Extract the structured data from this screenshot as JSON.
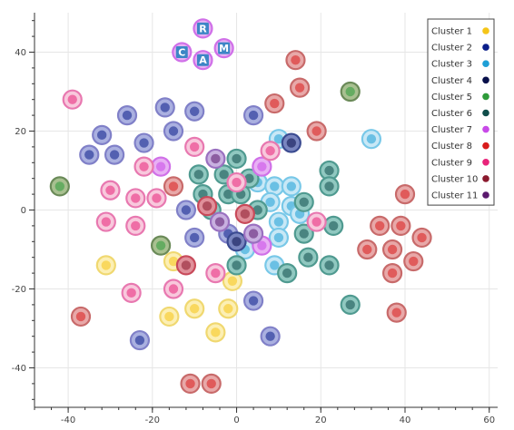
{
  "chart_data": {
    "type": "scatter",
    "title": "",
    "xlabel": "",
    "ylabel": "",
    "xlim": [
      -48,
      62
    ],
    "ylim": [
      -50,
      50
    ],
    "x_ticks": [
      -40,
      -20,
      0,
      20,
      40,
      60
    ],
    "y_ticks": [
      -40,
      -20,
      0,
      20,
      40
    ],
    "grid": true,
    "legend_position": "top-right",
    "series": [
      {
        "name": "Cluster 1",
        "color": "#f5c518",
        "ring": "#f0d870",
        "inner": "#fcefb4",
        "points": [
          {
            "x": -31,
            "y": -14,
            "icon": "tangerine-icon"
          },
          {
            "x": -15,
            "y": -13,
            "icon": "yellow-heart-icon"
          },
          {
            "x": -1,
            "y": -18,
            "icon": "blue-heart-icon"
          },
          {
            "x": -10,
            "y": -25,
            "icon": "cookie-icon"
          },
          {
            "x": -16,
            "y": -27,
            "icon": "tiger-icon"
          },
          {
            "x": -2,
            "y": -25,
            "icon": "paw-prints-icon"
          },
          {
            "x": -5,
            "y": -31,
            "icon": "bee-icon"
          }
        ]
      },
      {
        "name": "Cluster 2",
        "color": "#0b1f8a",
        "ring": "#8080c8",
        "inner": "#aab0e0",
        "points": [
          {
            "x": -26,
            "y": 24,
            "icon": "christmas-tree-icon"
          },
          {
            "x": -17,
            "y": 26,
            "icon": "palm-tree-icon"
          },
          {
            "x": -10,
            "y": 25,
            "icon": "crescent-moon-icon"
          },
          {
            "x": -32,
            "y": 19,
            "icon": "waffle-icon"
          },
          {
            "x": -15,
            "y": 20,
            "icon": "sun-face-icon"
          },
          {
            "x": -35,
            "y": 14,
            "icon": "maple-leaf-icon"
          },
          {
            "x": -29,
            "y": 14,
            "icon": "candy-icon"
          },
          {
            "x": -22,
            "y": 17,
            "icon": "sunflower-icon"
          },
          {
            "x": -12,
            "y": 0,
            "icon": "check-mark-icon"
          },
          {
            "x": -10,
            "y": -7,
            "icon": "sun-icon"
          },
          {
            "x": -2,
            "y": -6,
            "icon": "hand-icon"
          },
          {
            "x": -23,
            "y": -33,
            "icon": "exclamation-icon"
          },
          {
            "x": 4,
            "y": 24,
            "icon": "syringe-icon"
          },
          {
            "x": 4,
            "y": -23,
            "icon": "baseball-icon"
          },
          {
            "x": 8,
            "y": -32,
            "icon": "snowflake-icon"
          }
        ]
      },
      {
        "name": "Cluster 3",
        "color": "#1e9fd6",
        "ring": "#78c8e8",
        "inner": "#c8e8f6",
        "points": [
          {
            "x": 10,
            "y": 18,
            "icon": "fire-icon"
          },
          {
            "x": 32,
            "y": 18,
            "icon": "ambulance-icon"
          },
          {
            "x": 5,
            "y": 7,
            "icon": "cat-icon"
          },
          {
            "x": 9,
            "y": 6,
            "icon": "thumbs-up-icon"
          },
          {
            "x": 8,
            "y": 2,
            "icon": "pray-icon"
          },
          {
            "x": 13,
            "y": 6,
            "icon": "flexed-arm-icon"
          },
          {
            "x": 13,
            "y": 1,
            "icon": "grin-icon"
          },
          {
            "x": 10,
            "y": -3,
            "icon": "ok-hand-icon"
          },
          {
            "x": 2,
            "y": -10,
            "icon": "muscle-icon"
          },
          {
            "x": 10,
            "y": -7,
            "icon": "clap-icon"
          },
          {
            "x": 15,
            "y": -1,
            "icon": "wave-icon"
          },
          {
            "x": 9,
            "y": -14,
            "icon": "hundred-icon"
          }
        ]
      },
      {
        "name": "Cluster 4",
        "color": "#070f4a",
        "ring": "#3a4a90",
        "inner": "#7a86c0",
        "points": [
          {
            "x": 13,
            "y": 17,
            "icon": "fist-icon"
          },
          {
            "x": 0,
            "y": -8,
            "icon": "hand-raised-icon"
          }
        ]
      },
      {
        "name": "Cluster 5",
        "color": "#2e9b3a",
        "ring": "#6a8a58",
        "inner": "#a8c090",
        "points": [
          {
            "x": -42,
            "y": 6,
            "icon": "wind-face-icon"
          },
          {
            "x": 27,
            "y": 30,
            "icon": "face-icon"
          },
          {
            "x": -18,
            "y": -9,
            "icon": "leaf-icon"
          }
        ]
      },
      {
        "name": "Cluster 6",
        "color": "#0f4d4a",
        "ring": "#4f9a90",
        "inner": "#90c8c0",
        "points": [
          {
            "x": 0,
            "y": 13,
            "icon": "smile-icon"
          },
          {
            "x": -9,
            "y": 9,
            "icon": "heart-eyes-icon"
          },
          {
            "x": -3,
            "y": 9,
            "icon": "smirk-icon"
          },
          {
            "x": 3,
            "y": 8,
            "icon": "kiss-icon"
          },
          {
            "x": -8,
            "y": 4,
            "icon": "blush-icon"
          },
          {
            "x": -2,
            "y": 4,
            "icon": "sweat-smile-icon"
          },
          {
            "x": 1,
            "y": 4,
            "icon": "grimace-icon"
          },
          {
            "x": -6,
            "y": 0,
            "icon": "angry-icon"
          },
          {
            "x": 5,
            "y": 0,
            "icon": "cool-icon"
          },
          {
            "x": 0,
            "y": -14,
            "icon": "wink-icon"
          },
          {
            "x": 22,
            "y": 10,
            "icon": "jack-o-lantern-icon"
          },
          {
            "x": 22,
            "y": 6,
            "icon": "ghost-icon"
          },
          {
            "x": 16,
            "y": 2,
            "icon": "laugh-icon"
          },
          {
            "x": 16,
            "y": -6,
            "icon": "joy-icon"
          },
          {
            "x": 17,
            "y": -12,
            "icon": "rofl-icon"
          },
          {
            "x": 22,
            "y": -14,
            "icon": "skull-icon"
          },
          {
            "x": 23,
            "y": -4,
            "icon": "tear-icon"
          },
          {
            "x": 27,
            "y": -24,
            "icon": "clapper-icon"
          },
          {
            "x": 12,
            "y": -16,
            "icon": "relieved-icon"
          }
        ]
      },
      {
        "name": "Cluster 7",
        "color": "#c84ae8",
        "ring": "#d070e8",
        "inner": "#e8b0f4",
        "points": [
          {
            "x": -8,
            "y": 46,
            "icon": "letter-r-icon",
            "label": "R"
          },
          {
            "x": -13,
            "y": 40,
            "icon": "letter-c-icon",
            "label": "C"
          },
          {
            "x": -3,
            "y": 41,
            "icon": "letter-m-icon",
            "label": "M"
          },
          {
            "x": -8,
            "y": 38,
            "icon": "letter-a-icon",
            "label": "A"
          },
          {
            "x": -18,
            "y": 11,
            "icon": "lion-icon"
          },
          {
            "x": 6,
            "y": -9,
            "icon": "devil-icon"
          },
          {
            "x": 6,
            "y": 11,
            "icon": "neutral-face-icon"
          }
        ]
      },
      {
        "name": "Cluster 8",
        "color": "#d81b1b",
        "ring": "#c86a6a",
        "inner": "#e8a8a8",
        "points": [
          {
            "x": 14,
            "y": 38,
            "icon": "minus-icon"
          },
          {
            "x": 15,
            "y": 31,
            "icon": "cross-mark-icon"
          },
          {
            "x": 9,
            "y": 27,
            "icon": "prohibited-icon"
          },
          {
            "x": 19,
            "y": 20,
            "icon": "double-exclamation-icon"
          },
          {
            "x": -15,
            "y": 6,
            "icon": "apple-icon"
          },
          {
            "x": 40,
            "y": 4,
            "icon": "mute-icon"
          },
          {
            "x": -37,
            "y": -27,
            "icon": "dollar-icon"
          },
          {
            "x": 34,
            "y": -4,
            "icon": "music-note-icon"
          },
          {
            "x": 39,
            "y": -4,
            "icon": "microphone-icon"
          },
          {
            "x": 44,
            "y": -7,
            "icon": "piano-icon"
          },
          {
            "x": 31,
            "y": -10,
            "icon": "cd-icon"
          },
          {
            "x": 37,
            "y": -10,
            "icon": "headphones-icon"
          },
          {
            "x": 37,
            "y": -16,
            "icon": "guitar-icon"
          },
          {
            "x": 38,
            "y": -26,
            "icon": "trumpet-icon"
          },
          {
            "x": 42,
            "y": -13,
            "icon": "notes-icon"
          },
          {
            "x": -11,
            "y": -44,
            "icon": "pill-icon"
          },
          {
            "x": -6,
            "y": -44,
            "icon": "balloons-icon"
          }
        ]
      },
      {
        "name": "Cluster 9",
        "color": "#e8247a",
        "ring": "#e878b0",
        "inner": "#f8c8dc",
        "points": [
          {
            "x": -39,
            "y": 28,
            "icon": "pizza-icon"
          },
          {
            "x": -10,
            "y": 16,
            "icon": "beer-icon"
          },
          {
            "x": -22,
            "y": 11,
            "icon": "beer-mug-icon"
          },
          {
            "x": -30,
            "y": 5,
            "icon": "cocktail-icon"
          },
          {
            "x": -24,
            "y": 3,
            "icon": "wine-icon"
          },
          {
            "x": -31,
            "y": -3,
            "icon": "drumstick-icon"
          },
          {
            "x": -24,
            "y": -4,
            "icon": "fork-knife-icon"
          },
          {
            "x": -19,
            "y": 3,
            "icon": "hamburger-icon"
          },
          {
            "x": 0,
            "y": 7,
            "icon": "lips-icon"
          },
          {
            "x": -25,
            "y": -21,
            "icon": "lollipop-icon"
          },
          {
            "x": -5,
            "y": -16,
            "icon": "basketball-icon"
          },
          {
            "x": -15,
            "y": -20,
            "icon": "bear-icon"
          },
          {
            "x": 19,
            "y": -3,
            "icon": "flushed-icon"
          },
          {
            "x": 8,
            "y": 15,
            "icon": "sweat-icon"
          }
        ]
      },
      {
        "name": "Cluster 10",
        "color": "#8b1a2e",
        "ring": "#c84a5a",
        "inner": "#e0909a",
        "points": [
          {
            "x": -7,
            "y": 1,
            "icon": "red-heart-icon"
          },
          {
            "x": 2,
            "y": -1,
            "icon": "broken-heart-icon"
          },
          {
            "x": -12,
            "y": -14,
            "icon": "hand-point-icon"
          }
        ]
      },
      {
        "name": "Cluster 11",
        "color": "#5b1a6e",
        "ring": "#9a70c0",
        "inner": "#c8b0e0",
        "points": [
          {
            "x": -5,
            "y": 13,
            "icon": "dizzy-face-icon"
          },
          {
            "x": -4,
            "y": -3,
            "icon": "kissing-face-icon"
          },
          {
            "x": 4,
            "y": -6,
            "icon": "cold-sweat-icon"
          }
        ]
      }
    ]
  }
}
